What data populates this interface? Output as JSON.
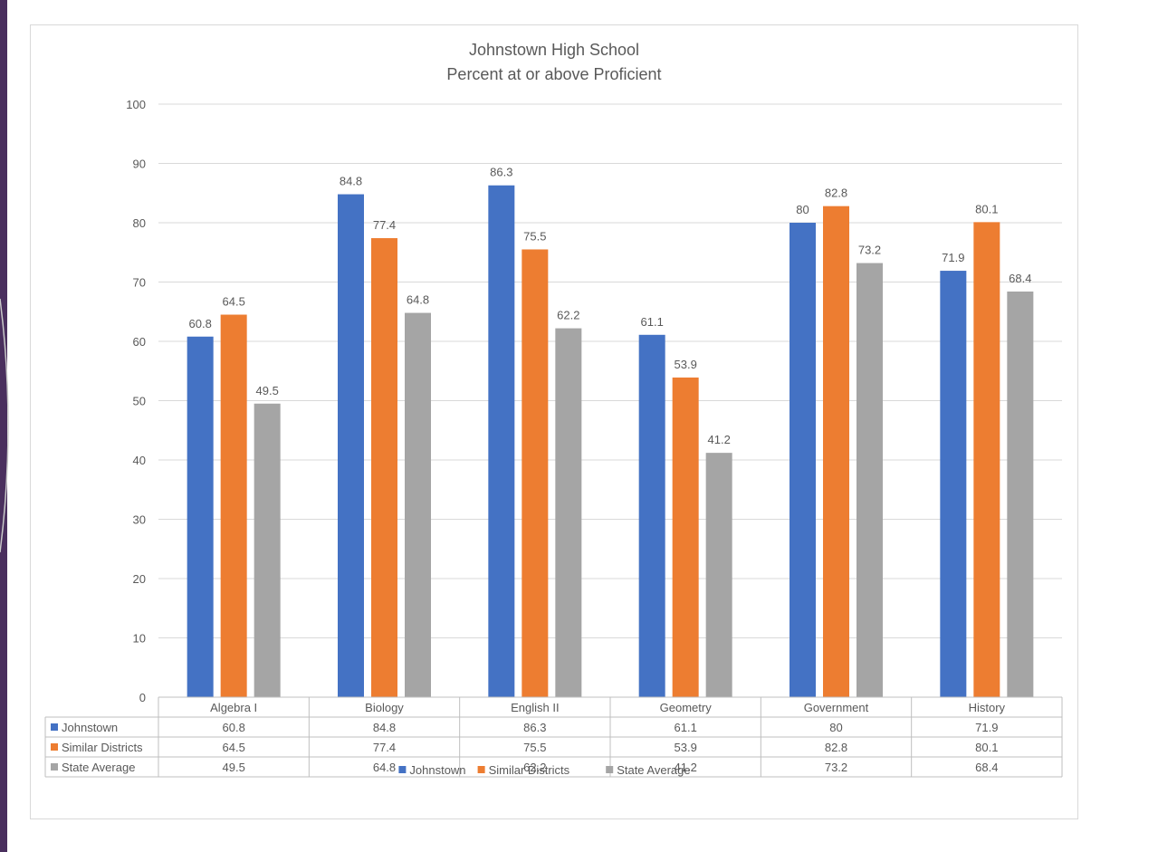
{
  "chart_data": {
    "type": "bar",
    "title": "Johnstown High School",
    "subtitle": "Percent at or above Proficient",
    "categories": [
      "Algebra I",
      "Biology",
      "English II",
      "Geometry",
      "Government",
      "History"
    ],
    "series": [
      {
        "name": "Johnstown",
        "color": "#4472c4",
        "values": [
          60.8,
          84.8,
          86.3,
          61.1,
          80,
          71.9
        ],
        "labels": [
          "60.8",
          "84.8",
          "86.3",
          "61.1",
          "80",
          "71.9"
        ]
      },
      {
        "name": "Similar Districts",
        "color": "#ed7d31",
        "values": [
          64.5,
          77.4,
          75.5,
          53.9,
          82.8,
          80.1
        ],
        "labels": [
          "64.5",
          "77.4",
          "75.5",
          "53.9",
          "82.8",
          "80.1"
        ]
      },
      {
        "name": "State Average",
        "color": "#a5a5a5",
        "values": [
          49.5,
          64.8,
          62.2,
          41.2,
          73.2,
          68.4
        ],
        "labels": [
          "49.5",
          "64.8",
          "62.2",
          "41.2",
          "73.2",
          "68.4"
        ]
      }
    ],
    "ylim": [
      0,
      100
    ],
    "yticks": [
      "0",
      "10",
      "20",
      "30",
      "40",
      "50",
      "60",
      "70",
      "80",
      "90",
      "100"
    ],
    "grid": true,
    "data_table": true,
    "legend": "bottom"
  }
}
